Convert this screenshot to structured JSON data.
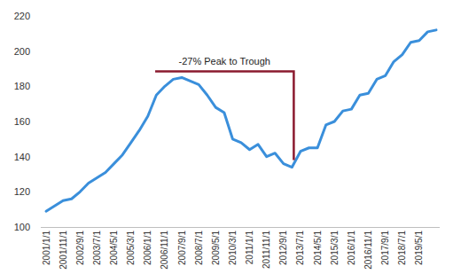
{
  "chart_data": {
    "type": "line",
    "categories": [
      "2001/1/1",
      null,
      "2001/11/1",
      null,
      "2002/9/1",
      null,
      "2003/7/1",
      null,
      "2004/5/1",
      null,
      "2005/3/1",
      null,
      "2006/1/1",
      null,
      "2006/11/1",
      null,
      "2007/9/1",
      null,
      "2008/7/1",
      null,
      "2009/5/1",
      null,
      "2010/3/1",
      null,
      "2011/1/1",
      null,
      "2011/11/1",
      null,
      "2012/9/1",
      null,
      "2013/7/1",
      null,
      "2014/5/1",
      null,
      "2015/3/1",
      null,
      "2016/1/1",
      null,
      "2016/11/1",
      null,
      "2017/9/1",
      null,
      "2018/7/1",
      null,
      "2019/5/1",
      null,
      null
    ],
    "values": [
      109,
      112,
      115,
      116,
      120,
      125,
      128,
      131,
      136,
      141,
      148,
      155,
      163,
      175,
      180,
      184,
      185,
      183,
      181,
      175,
      168,
      165,
      150,
      148,
      144,
      147,
      140,
      142,
      136,
      134,
      143,
      145,
      145,
      158,
      160,
      166,
      167,
      175,
      176,
      184,
      186,
      194,
      198,
      205,
      206,
      211,
      212
    ],
    "color": "#3a8fdb",
    "ylim": [
      100,
      220
    ],
    "yticks": [
      100,
      120,
      140,
      160,
      180,
      200,
      220
    ],
    "grid": false,
    "annotations": [
      {
        "text": "-27% Peak to Trough"
      }
    ]
  }
}
